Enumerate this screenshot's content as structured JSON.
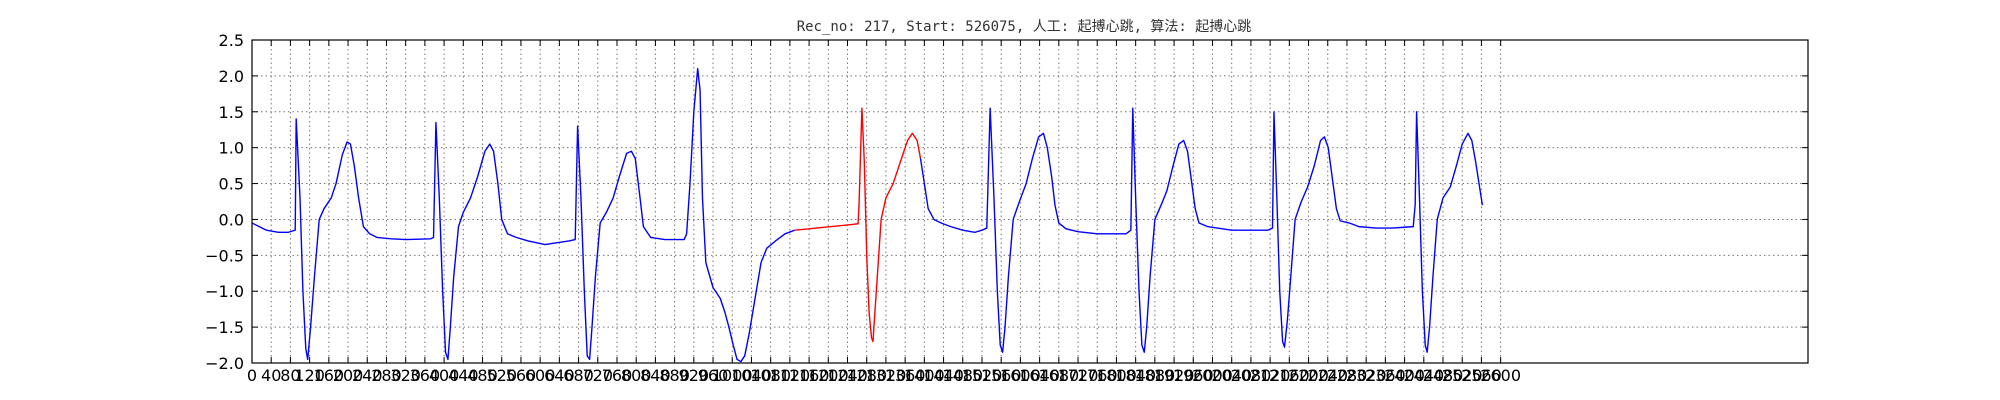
{
  "chart_data": {
    "type": "line",
    "title": "Rec_no: 217, Start: 526075, 人工: 起搏心跳, 算法: 起搏心跳",
    "xlabel": "",
    "ylabel": "",
    "xlim": [
      0,
      3240
    ],
    "ylim": [
      -2.0,
      2.5
    ],
    "grid": true,
    "y_ticks": [
      "2.5",
      "2.0",
      "1.5",
      "1.0",
      "0.5",
      "0.0",
      "−0.5",
      "−1.0",
      "−1.5",
      "−2.0"
    ],
    "x_tick_labels": [
      "0",
      "40",
      "80",
      "120",
      "160",
      "200",
      "240",
      "280",
      "320",
      "360",
      "400",
      "440",
      "480",
      "520",
      "560",
      "600",
      "640",
      "680",
      "720",
      "760",
      "800",
      "840",
      "880",
      "920",
      "960",
      "1000",
      "1040",
      "1080",
      "1120",
      "1160",
      "1200",
      "1240",
      "1280",
      "1320",
      "1360",
      "1400",
      "1440",
      "1480",
      "1520",
      "1560",
      "1600",
      "1640",
      "1680",
      "1720",
      "1760",
      "1800",
      "1840",
      "1880",
      "1920",
      "1960",
      "2000",
      "2040",
      "2080",
      "2120",
      "2160",
      "2200",
      "2240",
      "2280",
      "2320",
      "2360",
      "2400",
      "2440",
      "2480",
      "2520",
      "2560",
      "2600"
    ],
    "series": [
      {
        "color": "#0000ff",
        "points": [
          [
            0,
            -0.05
          ],
          [
            15,
            -0.1
          ],
          [
            30,
            -0.15
          ],
          [
            55,
            -0.18
          ],
          [
            75,
            -0.18
          ],
          [
            90,
            -0.15
          ],
          [
            92,
            1.4
          ],
          [
            100,
            0.3
          ],
          [
            106,
            -1.0
          ],
          [
            112,
            -1.8
          ],
          [
            116,
            -1.95
          ],
          [
            122,
            -1.5
          ],
          [
            130,
            -0.8
          ],
          [
            140,
            0.0
          ],
          [
            150,
            0.15
          ],
          [
            165,
            0.3
          ],
          [
            175,
            0.5
          ],
          [
            188,
            0.9
          ],
          [
            198,
            1.08
          ],
          [
            205,
            1.05
          ],
          [
            213,
            0.75
          ],
          [
            222,
            0.3
          ],
          [
            232,
            -0.1
          ],
          [
            245,
            -0.2
          ],
          [
            260,
            -0.25
          ],
          [
            290,
            -0.27
          ],
          [
            320,
            -0.28
          ],
          [
            372,
            -0.27
          ],
          [
            378,
            -0.25
          ],
          [
            383,
            1.35
          ],
          [
            390,
            0.3
          ],
          [
            397,
            -1.0
          ],
          [
            403,
            -1.85
          ],
          [
            408,
            -1.95
          ],
          [
            413,
            -1.5
          ],
          [
            420,
            -0.8
          ],
          [
            430,
            -0.1
          ],
          [
            440,
            0.1
          ],
          [
            455,
            0.3
          ],
          [
            470,
            0.6
          ],
          [
            485,
            0.95
          ],
          [
            495,
            1.05
          ],
          [
            503,
            0.95
          ],
          [
            512,
            0.5
          ],
          [
            520,
            0.0
          ],
          [
            532,
            -0.2
          ],
          [
            550,
            -0.25
          ],
          [
            575,
            -0.3
          ],
          [
            610,
            -0.35
          ],
          [
            660,
            -0.3
          ],
          [
            673,
            -0.28
          ],
          [
            678,
            1.3
          ],
          [
            685,
            0.3
          ],
          [
            692,
            -1.0
          ],
          [
            698,
            -1.9
          ],
          [
            703,
            -1.95
          ],
          [
            708,
            -1.5
          ],
          [
            715,
            -0.8
          ],
          [
            725,
            -0.05
          ],
          [
            738,
            0.1
          ],
          [
            752,
            0.3
          ],
          [
            765,
            0.6
          ],
          [
            780,
            0.92
          ],
          [
            790,
            0.95
          ],
          [
            798,
            0.85
          ],
          [
            808,
            0.3
          ],
          [
            815,
            -0.1
          ],
          [
            830,
            -0.25
          ],
          [
            860,
            -0.28
          ],
          [
            900,
            -0.28
          ],
          [
            905,
            -0.2
          ],
          [
            912,
            0.5
          ],
          [
            920,
            1.5
          ],
          [
            928,
            2.1
          ],
          [
            933,
            1.8
          ],
          [
            938,
            0.3
          ],
          [
            945,
            -0.6
          ],
          [
            960,
            -0.95
          ],
          [
            975,
            -1.1
          ],
          [
            985,
            -1.3
          ],
          [
            993,
            -1.5
          ],
          [
            1002,
            -1.75
          ],
          [
            1010,
            -1.95
          ],
          [
            1018,
            -1.98
          ],
          [
            1026,
            -1.9
          ],
          [
            1035,
            -1.6
          ],
          [
            1045,
            -1.2
          ],
          [
            1060,
            -0.6
          ],
          [
            1072,
            -0.4
          ],
          [
            1090,
            -0.3
          ],
          [
            1110,
            -0.2
          ],
          [
            1130,
            -0.15
          ]
        ]
      },
      {
        "color": "#ff0000",
        "points": [
          [
            1130,
            -0.15
          ],
          [
            1160,
            -0.13
          ],
          [
            1190,
            -0.11
          ],
          [
            1220,
            -0.09
          ],
          [
            1250,
            -0.07
          ],
          [
            1262,
            -0.06
          ],
          [
            1264,
            0.2
          ],
          [
            1270,
            1.55
          ],
          [
            1275,
            0.8
          ],
          [
            1280,
            -0.5
          ],
          [
            1285,
            -1.3
          ],
          [
            1290,
            -1.65
          ],
          [
            1293,
            -1.7
          ],
          [
            1297,
            -1.3
          ],
          [
            1303,
            -0.7
          ],
          [
            1310,
            0.0
          ],
          [
            1320,
            0.3
          ],
          [
            1335,
            0.5
          ],
          [
            1350,
            0.8
          ],
          [
            1365,
            1.1
          ],
          [
            1375,
            1.2
          ],
          [
            1385,
            1.1
          ],
          [
            1392,
            0.85
          ]
        ]
      },
      {
        "color": "#0000ff",
        "points": [
          [
            1392,
            0.85
          ],
          [
            1400,
            0.5
          ],
          [
            1408,
            0.15
          ],
          [
            1420,
            0.0
          ],
          [
            1435,
            -0.05
          ],
          [
            1455,
            -0.1
          ],
          [
            1480,
            -0.15
          ],
          [
            1505,
            -0.18
          ],
          [
            1520,
            -0.15
          ],
          [
            1530,
            -0.12
          ],
          [
            1537,
            1.55
          ],
          [
            1545,
            0.3
          ],
          [
            1552,
            -1.0
          ],
          [
            1558,
            -1.75
          ],
          [
            1563,
            -1.85
          ],
          [
            1568,
            -1.5
          ],
          [
            1575,
            -0.8
          ],
          [
            1585,
            0.0
          ],
          [
            1598,
            0.25
          ],
          [
            1612,
            0.5
          ],
          [
            1625,
            0.85
          ],
          [
            1638,
            1.15
          ],
          [
            1648,
            1.2
          ],
          [
            1656,
            1.0
          ],
          [
            1665,
            0.6
          ],
          [
            1672,
            0.2
          ],
          [
            1680,
            -0.05
          ],
          [
            1695,
            -0.13
          ],
          [
            1720,
            -0.17
          ],
          [
            1760,
            -0.2
          ],
          [
            1820,
            -0.2
          ],
          [
            1830,
            -0.15
          ],
          [
            1834,
            1.55
          ],
          [
            1840,
            0.3
          ],
          [
            1847,
            -1.0
          ],
          [
            1853,
            -1.75
          ],
          [
            1858,
            -1.85
          ],
          [
            1863,
            -1.5
          ],
          [
            1870,
            -0.8
          ],
          [
            1880,
            0.0
          ],
          [
            1893,
            0.2
          ],
          [
            1905,
            0.4
          ],
          [
            1918,
            0.75
          ],
          [
            1930,
            1.05
          ],
          [
            1940,
            1.1
          ],
          [
            1948,
            0.95
          ],
          [
            1956,
            0.55
          ],
          [
            1964,
            0.15
          ],
          [
            1972,
            -0.05
          ],
          [
            1990,
            -0.1
          ],
          [
            2010,
            -0.12
          ],
          [
            2040,
            -0.15
          ],
          [
            2065,
            -0.15
          ],
          [
            2115,
            -0.15
          ],
          [
            2125,
            -0.12
          ],
          [
            2128,
            1.5
          ],
          [
            2134,
            0.3
          ],
          [
            2140,
            -1.0
          ],
          [
            2146,
            -1.7
          ],
          [
            2150,
            -1.78
          ],
          [
            2156,
            -1.4
          ],
          [
            2163,
            -0.8
          ],
          [
            2172,
            0.0
          ],
          [
            2185,
            0.25
          ],
          [
            2198,
            0.45
          ],
          [
            2212,
            0.75
          ],
          [
            2225,
            1.1
          ],
          [
            2233,
            1.15
          ],
          [
            2241,
            1.0
          ],
          [
            2250,
            0.55
          ],
          [
            2258,
            0.15
          ],
          [
            2266,
            -0.02
          ],
          [
            2285,
            -0.05
          ],
          [
            2305,
            -0.1
          ],
          [
            2340,
            -0.12
          ],
          [
            2375,
            -0.12
          ],
          [
            2418,
            -0.1
          ],
          [
            2422,
            0.2
          ],
          [
            2425,
            1.5
          ],
          [
            2431,
            0.3
          ],
          [
            2437,
            -1.0
          ],
          [
            2443,
            -1.75
          ],
          [
            2447,
            -1.85
          ],
          [
            2452,
            -1.5
          ],
          [
            2459,
            -0.8
          ],
          [
            2468,
            0.0
          ],
          [
            2480,
            0.3
          ],
          [
            2495,
            0.45
          ],
          [
            2508,
            0.75
          ],
          [
            2520,
            1.05
          ],
          [
            2532,
            1.2
          ],
          [
            2540,
            1.1
          ],
          [
            2548,
            0.8
          ],
          [
            2555,
            0.5
          ],
          [
            2562,
            0.2
          ]
        ]
      }
    ]
  }
}
